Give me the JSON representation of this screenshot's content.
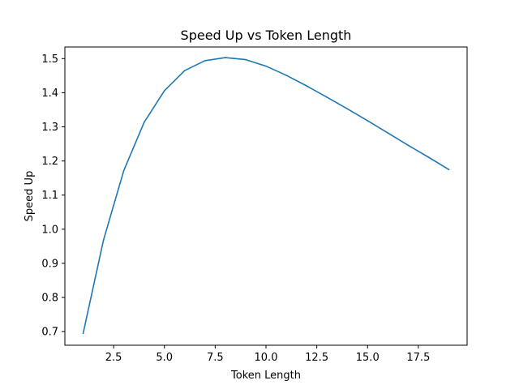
{
  "chart_data": {
    "type": "line",
    "title": "Speed Up vs Token Length",
    "xlabel": "Token Length",
    "ylabel": "Speed Up",
    "xlim": [
      0.1,
      19.9
    ],
    "ylim": [
      0.66,
      1.534
    ],
    "xticks": [
      2.5,
      5.0,
      7.5,
      10.0,
      12.5,
      15.0,
      17.5
    ],
    "xtick_labels": [
      "2.5",
      "5.0",
      "7.5",
      "10.0",
      "12.5",
      "15.0",
      "17.5"
    ],
    "yticks": [
      0.7,
      0.8,
      0.9,
      1.0,
      1.1,
      1.2,
      1.3,
      1.4,
      1.5
    ],
    "ytick_labels": [
      "0.7",
      "0.8",
      "0.9",
      "1.0",
      "1.1",
      "1.2",
      "1.3",
      "1.4",
      "1.5"
    ],
    "grid": false,
    "legend": false,
    "series": [
      {
        "color": "#1f77b4",
        "x": [
          1,
          2,
          3,
          4,
          5,
          6,
          7,
          8,
          9,
          10,
          11,
          12,
          13,
          14,
          15,
          16,
          17,
          18,
          19
        ],
        "y": [
          0.695,
          0.968,
          1.172,
          1.313,
          1.406,
          1.465,
          1.494,
          1.503,
          1.497,
          1.478,
          1.451,
          1.42,
          1.387,
          1.353,
          1.318,
          1.282,
          1.246,
          1.211,
          1.175
        ]
      }
    ]
  }
}
